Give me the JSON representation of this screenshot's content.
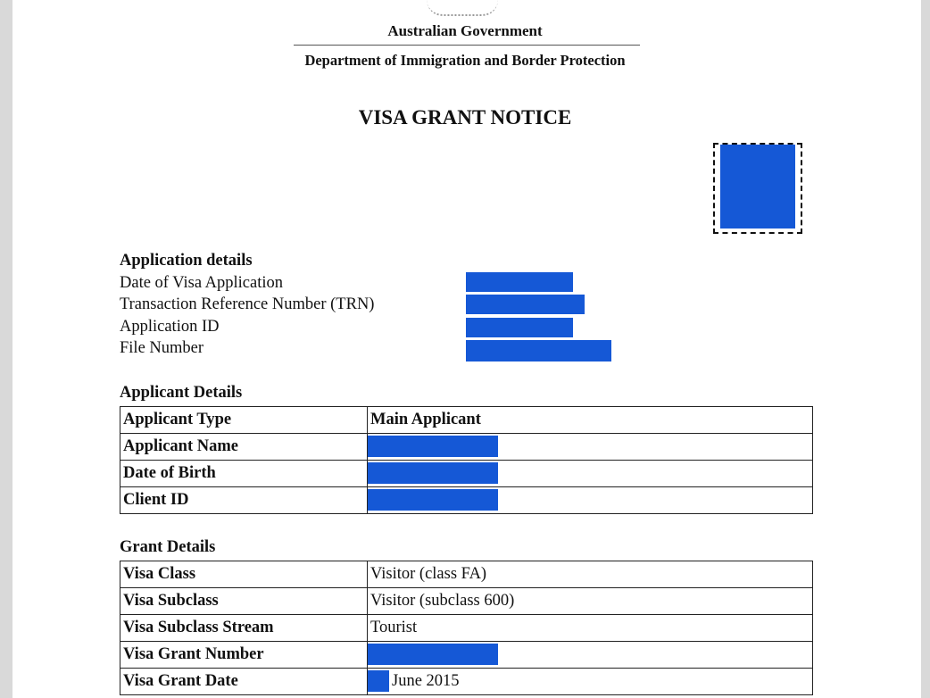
{
  "header": {
    "government": "Australian Government",
    "department": "Department of Immigration and Border Protection",
    "title": "VISA GRANT NOTICE"
  },
  "application_details": {
    "heading": "Application details",
    "labels": [
      "Date of Visa Application",
      "Transaction Reference Number (TRN)",
      "Application ID",
      "File Number"
    ]
  },
  "applicant_details": {
    "heading": "Applicant Details",
    "rows": [
      {
        "label": "Applicant Type",
        "value": "Main Applicant",
        "redacted": false
      },
      {
        "label": "Applicant Name",
        "value": "",
        "redacted": true
      },
      {
        "label": "Date of Birth",
        "value": "",
        "redacted": true
      },
      {
        "label": "Client ID",
        "value": "",
        "redacted": true
      }
    ]
  },
  "grant_details": {
    "heading": "Grant Details",
    "rows": [
      {
        "label": "Visa Class",
        "value": "Visitor (class FA)"
      },
      {
        "label": "Visa Subclass",
        "value": "Visitor (subclass 600)"
      },
      {
        "label": "Visa Subclass Stream",
        "value": "Tourist"
      },
      {
        "label": "Visa Grant Number",
        "value": ""
      },
      {
        "label": "Visa Grant Date",
        "value": "June 2015"
      }
    ]
  },
  "colors": {
    "redaction": "#1558d6"
  }
}
